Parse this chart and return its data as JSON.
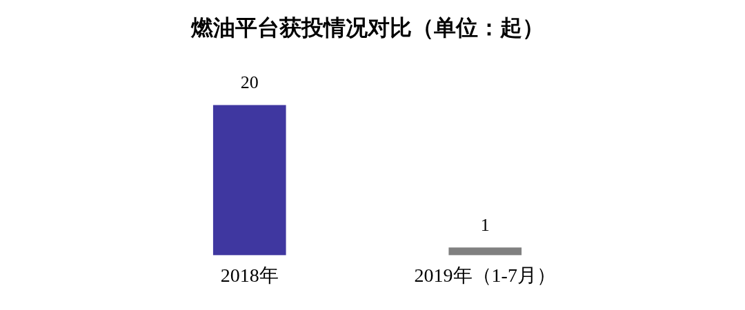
{
  "chart_data": {
    "type": "bar",
    "title": "燃油平台获投情况对比（单位：起）",
    "categories": [
      "2018年",
      "2019年（1-7月）"
    ],
    "values": [
      20,
      1
    ],
    "colors": [
      "#3f37a0",
      "#808080"
    ],
    "data_labels": true,
    "grid": false,
    "legend": false
  }
}
